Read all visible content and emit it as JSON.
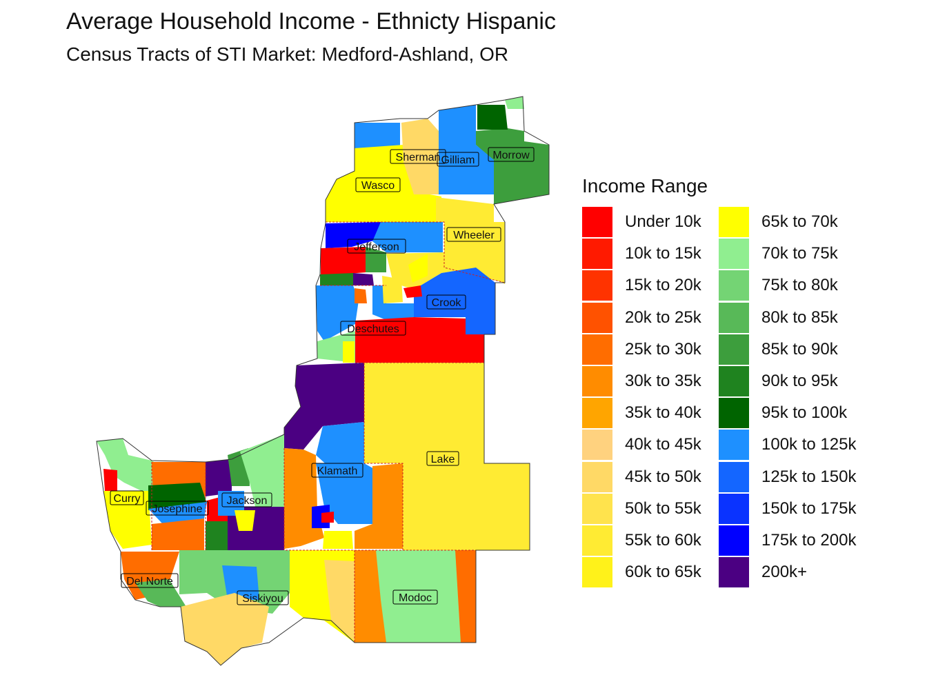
{
  "title": "Average Household Income - Ethnicty Hispanic",
  "subtitle": "Census Tracts of STI Market: Medford-Ashland, OR",
  "legend": {
    "title": "Income Range",
    "items": [
      {
        "label": "Under 10k",
        "color": "#ff0000"
      },
      {
        "label": "10k to 15k",
        "color": "#ff1a00"
      },
      {
        "label": "15k to 20k",
        "color": "#ff3300"
      },
      {
        "label": "20k to 25k",
        "color": "#ff5200"
      },
      {
        "label": "25k to 30k",
        "color": "#ff6d00"
      },
      {
        "label": "30k to 35k",
        "color": "#ff8c00"
      },
      {
        "label": "35k to 40k",
        "color": "#ffa500"
      },
      {
        "label": "40k to 45k",
        "color": "#ffd27f"
      },
      {
        "label": "45k to 50k",
        "color": "#ffd966"
      },
      {
        "label": "50k to 55k",
        "color": "#ffe34d"
      },
      {
        "label": "55k to 60k",
        "color": "#ffeb33"
      },
      {
        "label": "60k to 65k",
        "color": "#fff21a"
      },
      {
        "label": "65k to 70k",
        "color": "#ffff00"
      },
      {
        "label": "70k to 75k",
        "color": "#90ee90"
      },
      {
        "label": "75k to 80k",
        "color": "#74d474"
      },
      {
        "label": "80k to 85k",
        "color": "#58b958"
      },
      {
        "label": "85k to 90k",
        "color": "#3d9e3d"
      },
      {
        "label": "90k to 95k",
        "color": "#1f831f"
      },
      {
        "label": "95k to 100k",
        "color": "#006400"
      },
      {
        "label": "100k to 125k",
        "color": "#1e90ff"
      },
      {
        "label": "125k to 150k",
        "color": "#1466ff"
      },
      {
        "label": "150k to 175k",
        "color": "#0a33ff"
      },
      {
        "label": "175k to 200k",
        "color": "#0000ff"
      },
      {
        "label": "200k+",
        "color": "#4b0082"
      }
    ]
  },
  "counties": [
    {
      "name": "Sherman"
    },
    {
      "name": "Gilliam"
    },
    {
      "name": "Morrow"
    },
    {
      "name": "Wasco"
    },
    {
      "name": "Wheeler"
    },
    {
      "name": "Jefferson"
    },
    {
      "name": "Crook"
    },
    {
      "name": "Deschutes"
    },
    {
      "name": "Lake"
    },
    {
      "name": "Klamath"
    },
    {
      "name": "Curry"
    },
    {
      "name": "Josephine"
    },
    {
      "name": "Jackson"
    },
    {
      "name": "Del Norte"
    },
    {
      "name": "Siskiyou"
    },
    {
      "name": "Modoc"
    }
  ]
}
